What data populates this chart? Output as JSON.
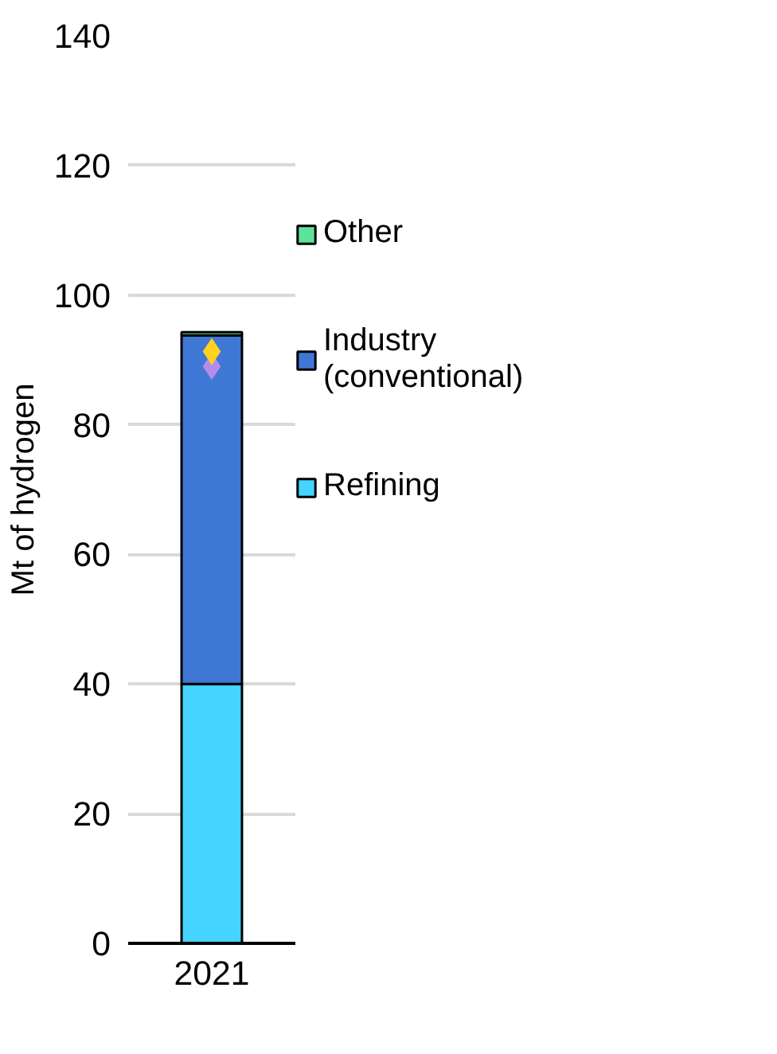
{
  "chart_data": {
    "type": "bar",
    "stacked": true,
    "ylabel": "Mt of hydrogen",
    "categories": [
      "2021"
    ],
    "series": [
      {
        "name": "Refining",
        "color": "#45d3ff",
        "values": [
          40
        ]
      },
      {
        "name": "Industry (conventional)",
        "color": "#3f77d4",
        "values": [
          53.8
        ]
      },
      {
        "name": "Other",
        "color": "#5ee39a",
        "values": [
          0.5
        ]
      },
      {
        "type": "scatter",
        "marker": "diamond",
        "color": "#b38ce8",
        "values": [
          89
        ]
      },
      {
        "type": "scatter",
        "marker": "diamond",
        "color": "#ffd21f",
        "values": [
          91.3
        ]
      }
    ],
    "ylim": [
      0,
      140
    ],
    "yticks": [
      0,
      20,
      40,
      60,
      80,
      100,
      120,
      140
    ],
    "grid": "y",
    "legend": "right"
  }
}
